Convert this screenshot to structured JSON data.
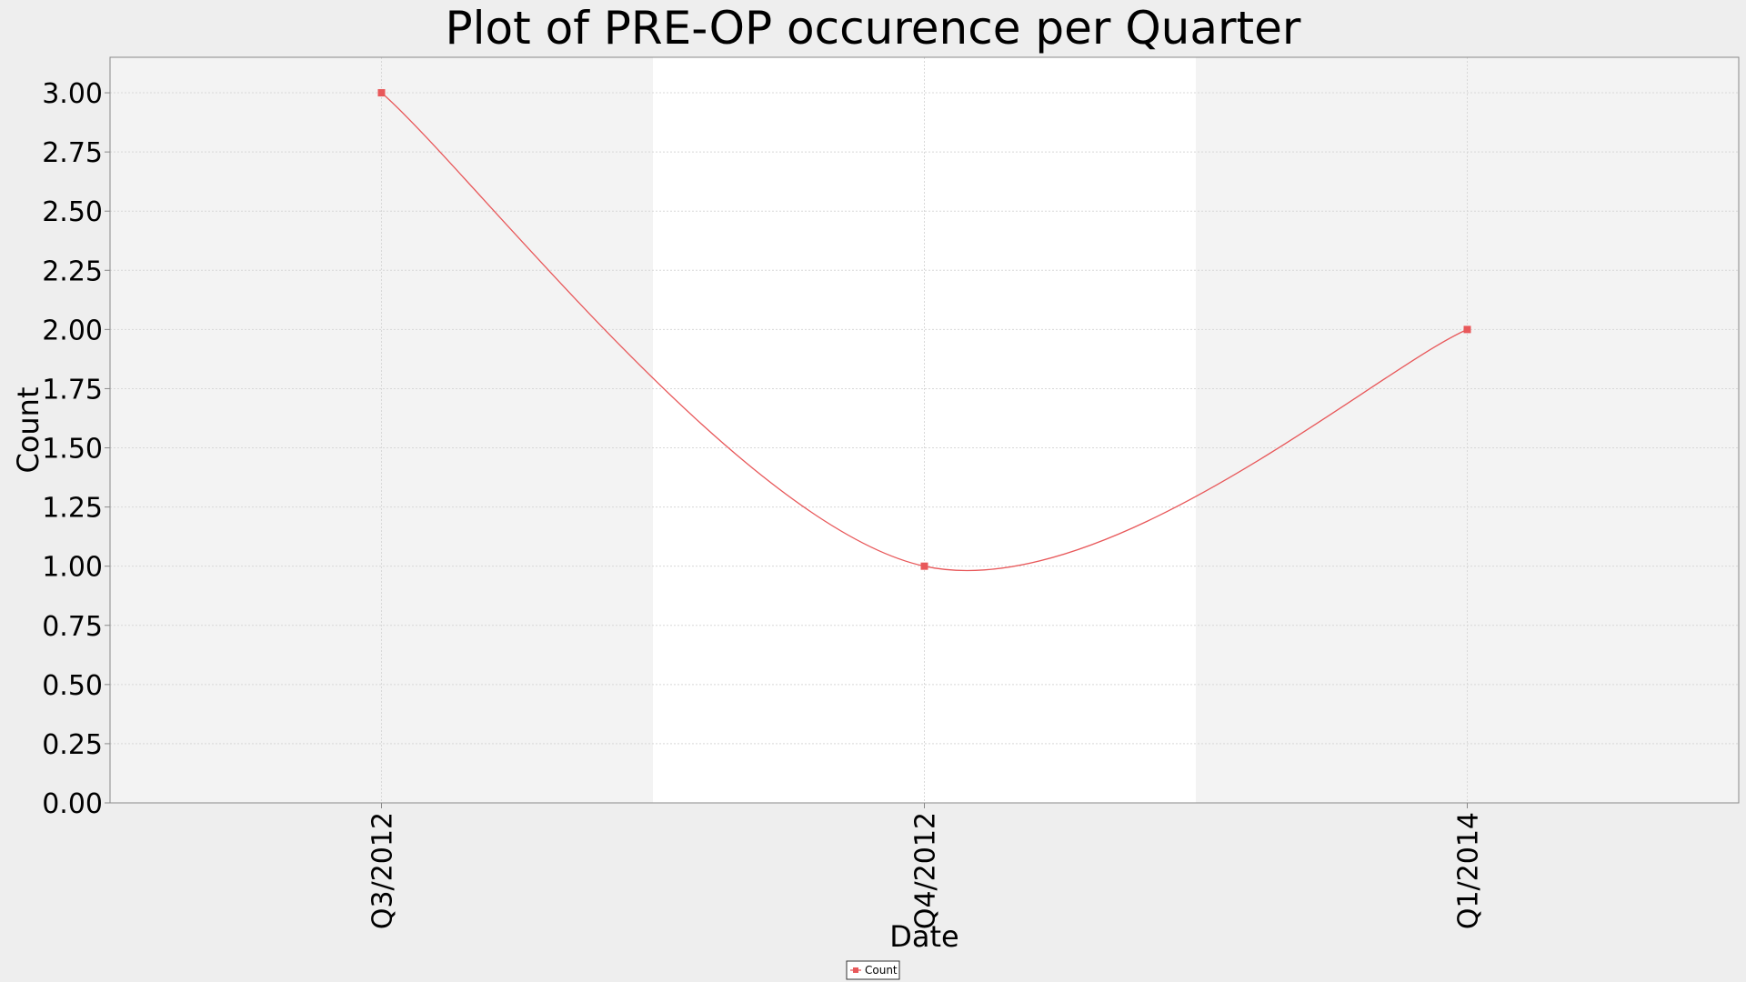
{
  "chart_data": {
    "type": "line",
    "title": "Plot of PRE-OP occurence per Quarter",
    "xlabel": "Date",
    "ylabel": "Count",
    "categories": [
      "Q3/2012",
      "Q4/2012",
      "Q1/2014"
    ],
    "series": [
      {
        "name": "Count",
        "color": "#e8585a",
        "values": [
          3.0,
          1.0,
          2.0
        ]
      }
    ],
    "ylim": [
      0,
      3.15
    ],
    "yticks": [
      "0.00",
      "0.25",
      "0.50",
      "0.75",
      "1.00",
      "1.25",
      "1.50",
      "1.75",
      "2.00",
      "2.25",
      "2.50",
      "2.75",
      "3.00"
    ],
    "grid": true,
    "line_style": "smoothed",
    "legend_position": "bottom-center",
    "colors": {
      "plot_background": "#f3f3f3",
      "alternate_band": "#ffffff",
      "page_background": "#eeeeee",
      "gridline": "#d8d8d8",
      "axis": "#888888"
    }
  }
}
